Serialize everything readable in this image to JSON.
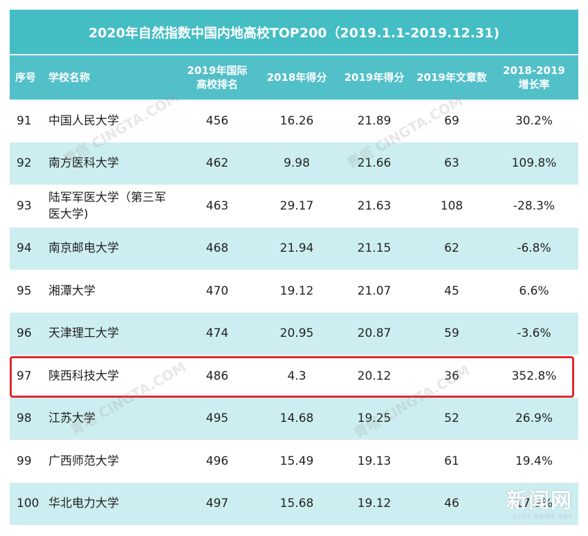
{
  "title": "2020年自然指数中国内地高校TOP200（2019.1.1-2019.12.31)",
  "headers": {
    "idx": "序号",
    "name": "学校名称",
    "intl_rank_line1": "2019年国际",
    "intl_rank_line2": "高校排名",
    "score_2018": "2018年得分",
    "score_2019": "2019年得分",
    "articles": "2019年文章数",
    "growth_line1": "2018-2019",
    "growth_line2": "增长率"
  },
  "rows": [
    {
      "idx": "91",
      "name": "中国人民大学",
      "rank": "456",
      "s2018": "16.26",
      "s2019": "21.89",
      "articles": "69",
      "growth": "30.2%"
    },
    {
      "idx": "92",
      "name": "南方医科大学",
      "rank": "462",
      "s2018": "9.98",
      "s2019": "21.66",
      "articles": "63",
      "growth": "109.8%"
    },
    {
      "idx": "93",
      "name": "陆军军医大学（第三军医大学)",
      "rank": "463",
      "s2018": "29.17",
      "s2019": "21.63",
      "articles": "108",
      "growth": "-28.3%"
    },
    {
      "idx": "94",
      "name": "南京邮电大学",
      "rank": "468",
      "s2018": "21.94",
      "s2019": "21.15",
      "articles": "62",
      "growth": "-6.8%"
    },
    {
      "idx": "95",
      "name": "湘潭大学",
      "rank": "470",
      "s2018": "19.12",
      "s2019": "21.07",
      "articles": "45",
      "growth": "6.6%"
    },
    {
      "idx": "96",
      "name": "天津理工大学",
      "rank": "474",
      "s2018": "20.95",
      "s2019": "20.87",
      "articles": "59",
      "growth": "-3.6%"
    },
    {
      "idx": "97",
      "name": "陕西科技大学",
      "rank": "486",
      "s2018": "4.3",
      "s2019": "20.12",
      "articles": "36",
      "growth": "352.8%"
    },
    {
      "idx": "98",
      "name": "江苏大学",
      "rank": "495",
      "s2018": "14.68",
      "s2019": "19.25",
      "articles": "52",
      "growth": "26.9%"
    },
    {
      "idx": "99",
      "name": "广西师范大学",
      "rank": "496",
      "s2018": "15.49",
      "s2019": "19.13",
      "articles": "61",
      "growth": "19.4%"
    },
    {
      "idx": "100",
      "name": "华北电力大学",
      "rank": "497",
      "s2018": "15.68",
      "s2019": "19.12",
      "articles": "46",
      "growth": "17.9%"
    }
  ],
  "highlight_row_index": 6,
  "watermark_text": "青塔 CINGTA.COM",
  "logo": {
    "big": "新闻网",
    "small": "SUST NEWS NET"
  },
  "colors": {
    "title_bg": "#44bdc4",
    "header_bg": "#52c0c9",
    "alt_row_bg": "#cdeef0",
    "highlight": "#e0262a"
  }
}
